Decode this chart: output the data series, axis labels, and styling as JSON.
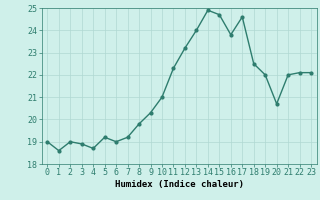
{
  "x": [
    0,
    1,
    2,
    3,
    4,
    5,
    6,
    7,
    8,
    9,
    10,
    11,
    12,
    13,
    14,
    15,
    16,
    17,
    18,
    19,
    20,
    21,
    22,
    23
  ],
  "y": [
    19.0,
    18.6,
    19.0,
    18.9,
    18.7,
    19.2,
    19.0,
    19.2,
    19.8,
    20.3,
    21.0,
    22.3,
    23.2,
    24.0,
    24.9,
    24.7,
    23.8,
    24.6,
    22.5,
    22.0,
    20.7,
    22.0,
    22.1,
    22.1
  ],
  "line_color": "#2e7d6e",
  "marker": "o",
  "marker_size": 2.0,
  "linewidth": 1.0,
  "bg_color": "#cff0ea",
  "grid_color": "#b0d8d2",
  "xlabel": "Humidex (Indice chaleur)",
  "ylim": [
    18,
    25
  ],
  "xlim": [
    -0.5,
    23.5
  ],
  "yticks": [
    18,
    19,
    20,
    21,
    22,
    23,
    24,
    25
  ],
  "xticks": [
    0,
    1,
    2,
    3,
    4,
    5,
    6,
    7,
    8,
    9,
    10,
    11,
    12,
    13,
    14,
    15,
    16,
    17,
    18,
    19,
    20,
    21,
    22,
    23
  ],
  "xlabel_fontsize": 6.5,
  "tick_fontsize": 6.0
}
